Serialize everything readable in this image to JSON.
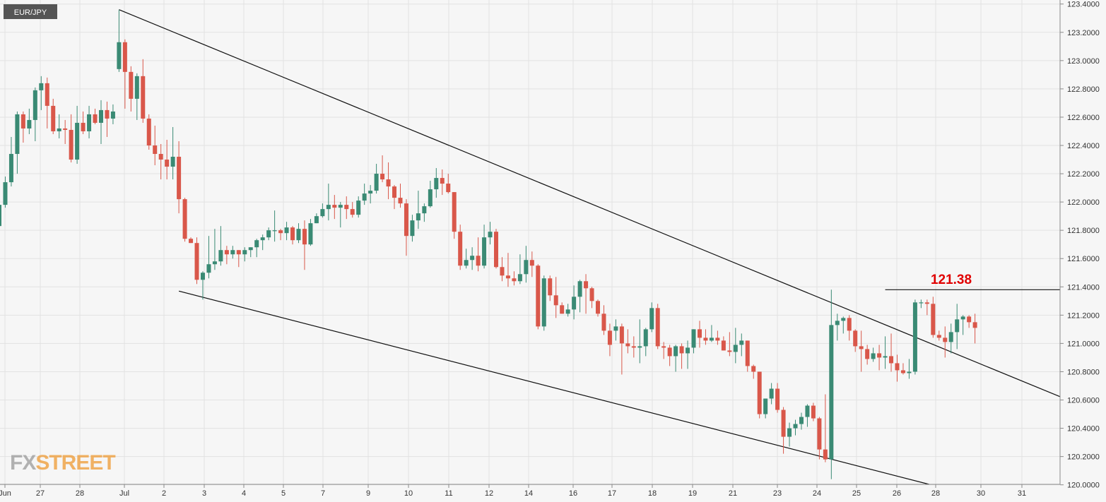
{
  "symbol": "EUR/JPY",
  "brand": {
    "fx": "FX",
    "street": "STREET"
  },
  "colors": {
    "up": "#3a8a74",
    "down": "#d9574a",
    "grid": "#e2e2e2",
    "axis": "#8a8a8a",
    "text": "#333333",
    "annotation": "#e00000",
    "badge_bg": "#555555",
    "brand": "#ee9a33"
  },
  "chart_data": {
    "type": "candlestick",
    "title": "EUR/JPY",
    "ylim": [
      119.94,
      123.44
    ],
    "y_ticks": [
      "123.4000",
      "123.2000",
      "123.0000",
      "122.8000",
      "122.6000",
      "122.4000",
      "122.2000",
      "122.0000",
      "121.8000",
      "121.6000",
      "121.4000",
      "121.2000",
      "121.0000",
      "120.8000",
      "120.6000",
      "120.4000",
      "120.2000",
      "120.0000"
    ],
    "x_ticks": [
      "Jun",
      "27",
      "28",
      "Jul",
      "2",
      "3",
      "4",
      "5",
      "7",
      "9",
      "10",
      "11",
      "12",
      "14",
      "16",
      "17",
      "18",
      "19",
      "21",
      "23",
      "24",
      "25",
      "26",
      "28",
      "30",
      "31"
    ],
    "annotations": [
      {
        "text": "121.38",
        "value": 121.38
      }
    ],
    "trendlines": [
      {
        "name": "upper",
        "from": {
          "bar": 20,
          "price": 123.36
        },
        "to": {
          "bar": 182,
          "price": 120.54
        }
      },
      {
        "name": "lower",
        "from": {
          "bar": 30,
          "price": 121.37
        },
        "to": {
          "bar": 163,
          "price": 119.92
        }
      },
      {
        "name": "resistance",
        "from": {
          "bar": 148,
          "price": 121.38
        },
        "to": {
          "bar": 182,
          "price": 121.38
        }
      }
    ],
    "candles": [
      [
        121.83,
        121.98,
        121.83,
        121.99
      ],
      [
        121.98,
        122.14,
        121.96,
        122.18
      ],
      [
        122.14,
        122.34,
        122.11,
        122.46
      ],
      [
        122.34,
        122.62,
        122.2,
        122.64
      ],
      [
        122.62,
        122.52,
        122.42,
        122.64
      ],
      [
        122.52,
        122.58,
        122.48,
        122.66
      ],
      [
        122.58,
        122.79,
        122.43,
        122.81
      ],
      [
        122.79,
        122.84,
        122.65,
        122.89
      ],
      [
        122.84,
        122.68,
        122.52,
        122.88
      ],
      [
        122.68,
        122.5,
        122.48,
        122.73
      ],
      [
        122.5,
        122.52,
        122.45,
        122.62
      ],
      [
        122.52,
        122.51,
        122.41,
        122.58
      ],
      [
        122.51,
        122.3,
        122.28,
        122.62
      ],
      [
        122.3,
        122.56,
        122.27,
        122.68
      ],
      [
        122.56,
        122.5,
        122.48,
        122.64
      ],
      [
        122.5,
        122.62,
        122.45,
        122.68
      ],
      [
        122.62,
        122.56,
        122.55,
        122.66
      ],
      [
        122.56,
        122.65,
        122.41,
        122.72
      ],
      [
        122.65,
        122.59,
        122.46,
        122.71
      ],
      [
        122.59,
        122.64,
        122.55,
        122.69
      ],
      [
        122.94,
        123.13,
        122.92,
        123.36
      ],
      [
        123.13,
        122.92,
        122.66,
        123.15
      ],
      [
        122.92,
        122.73,
        122.64,
        122.96
      ],
      [
        122.73,
        122.89,
        122.58,
        122.91
      ],
      [
        122.89,
        122.59,
        122.56,
        123.01
      ],
      [
        122.59,
        122.4,
        122.37,
        122.62
      ],
      [
        122.4,
        122.34,
        122.26,
        122.54
      ],
      [
        122.34,
        122.3,
        122.16,
        122.41
      ],
      [
        122.3,
        122.25,
        122.16,
        122.44
      ],
      [
        122.25,
        122.32,
        122.16,
        122.53
      ],
      [
        122.32,
        122.02,
        121.92,
        122.43
      ],
      [
        122.02,
        121.74,
        121.72,
        122.03
      ],
      [
        121.74,
        121.71,
        121.71,
        121.75
      ],
      [
        121.71,
        121.45,
        121.42,
        121.75
      ],
      [
        121.45,
        121.5,
        121.31,
        121.51
      ],
      [
        121.5,
        121.56,
        121.46,
        121.76
      ],
      [
        121.56,
        121.58,
        121.52,
        121.81
      ],
      [
        121.58,
        121.66,
        121.55,
        121.83
      ],
      [
        121.66,
        121.63,
        121.56,
        121.69
      ],
      [
        121.63,
        121.66,
        121.6,
        121.69
      ],
      [
        121.66,
        121.63,
        121.54,
        121.66
      ],
      [
        121.63,
        121.66,
        121.58,
        121.68
      ],
      [
        121.66,
        121.68,
        121.61,
        121.68
      ],
      [
        121.68,
        121.73,
        121.61,
        121.74
      ],
      [
        121.73,
        121.75,
        121.66,
        121.77
      ],
      [
        121.75,
        121.8,
        121.73,
        121.82
      ],
      [
        121.8,
        121.8,
        121.72,
        121.94
      ],
      [
        121.8,
        121.78,
        121.73,
        121.81
      ],
      [
        121.78,
        121.82,
        121.73,
        121.86
      ],
      [
        121.82,
        121.73,
        121.7,
        121.83
      ],
      [
        121.73,
        121.81,
        121.71,
        121.85
      ],
      [
        121.81,
        121.7,
        121.52,
        121.87
      ],
      [
        121.7,
        121.85,
        121.69,
        121.88
      ],
      [
        121.85,
        121.9,
        121.85,
        121.92
      ],
      [
        121.9,
        121.95,
        121.89,
        121.99
      ],
      [
        121.95,
        121.98,
        121.87,
        122.13
      ],
      [
        121.98,
        121.96,
        121.88,
        122.05
      ],
      [
        121.96,
        121.98,
        121.82,
        122.0
      ],
      [
        121.98,
        121.95,
        121.88,
        122.04
      ],
      [
        121.95,
        121.91,
        121.89,
        122.0
      ],
      [
        121.91,
        122.01,
        121.89,
        122.04
      ],
      [
        122.01,
        122.06,
        121.98,
        122.13
      ],
      [
        122.06,
        122.08,
        121.99,
        122.12
      ],
      [
        122.08,
        122.2,
        122.06,
        122.27
      ],
      [
        122.2,
        122.16,
        122.14,
        122.33
      ],
      [
        122.16,
        122.11,
        122.02,
        122.28
      ],
      [
        122.11,
        122.03,
        121.95,
        122.12
      ],
      [
        122.03,
        121.99,
        121.96,
        122.13
      ],
      [
        121.99,
        121.76,
        121.62,
        122.02
      ],
      [
        121.76,
        121.87,
        121.72,
        121.91
      ],
      [
        121.87,
        121.92,
        121.81,
        122.08
      ],
      [
        121.92,
        121.97,
        121.86,
        121.99
      ],
      [
        121.97,
        122.09,
        121.96,
        122.15
      ],
      [
        122.09,
        122.17,
        122.03,
        122.24
      ],
      [
        122.17,
        122.13,
        122.05,
        122.23
      ],
      [
        122.13,
        122.07,
        122.06,
        122.2
      ],
      [
        122.07,
        121.79,
        121.74,
        122.07
      ],
      [
        121.79,
        121.55,
        121.52,
        121.84
      ],
      [
        121.55,
        121.59,
        121.53,
        121.67
      ],
      [
        121.59,
        121.62,
        121.52,
        121.68
      ],
      [
        121.62,
        121.55,
        121.51,
        121.75
      ],
      [
        121.55,
        121.75,
        121.53,
        121.84
      ],
      [
        121.75,
        121.79,
        121.7,
        121.86
      ],
      [
        121.79,
        121.54,
        121.53,
        121.81
      ],
      [
        121.54,
        121.48,
        121.44,
        121.61
      ],
      [
        121.48,
        121.46,
        121.4,
        121.64
      ],
      [
        121.46,
        121.44,
        121.41,
        121.51
      ],
      [
        121.44,
        121.49,
        121.42,
        121.63
      ],
      [
        121.49,
        121.59,
        121.43,
        121.69
      ],
      [
        121.59,
        121.55,
        121.47,
        121.65
      ],
      [
        121.55,
        121.12,
        121.1,
        121.56
      ],
      [
        121.12,
        121.46,
        121.09,
        121.48
      ],
      [
        121.46,
        121.34,
        121.3,
        121.48
      ],
      [
        121.34,
        121.27,
        121.18,
        121.47
      ],
      [
        121.27,
        121.21,
        121.21,
        121.29
      ],
      [
        121.21,
        121.24,
        121.19,
        121.28
      ],
      [
        121.24,
        121.33,
        121.17,
        121.41
      ],
      [
        121.33,
        121.44,
        121.22,
        121.45
      ],
      [
        121.44,
        121.39,
        121.21,
        121.49
      ],
      [
        121.39,
        121.3,
        121.25,
        121.4
      ],
      [
        121.3,
        121.21,
        121.19,
        121.31
      ],
      [
        121.21,
        121.09,
        121.06,
        121.27
      ],
      [
        121.09,
        120.99,
        120.91,
        121.14
      ],
      [
        121.09,
        121.12,
        121.02,
        121.17
      ],
      [
        121.12,
        121.0,
        120.78,
        121.14
      ],
      [
        121.0,
        120.98,
        120.93,
        121.1
      ],
      [
        120.98,
        120.97,
        120.9,
        121.05
      ],
      [
        120.97,
        120.98,
        120.86,
        121.17
      ],
      [
        120.98,
        121.1,
        120.91,
        121.11
      ],
      [
        121.1,
        121.25,
        121.08,
        121.29
      ],
      [
        121.25,
        120.98,
        120.96,
        121.28
      ],
      [
        120.98,
        120.97,
        120.89,
        121.01
      ],
      [
        120.97,
        120.91,
        120.84,
        120.99
      ],
      [
        120.91,
        120.98,
        120.8,
        120.99
      ],
      [
        120.98,
        120.93,
        120.82,
        121.0
      ],
      [
        120.93,
        120.97,
        120.82,
        121.02
      ],
      [
        120.97,
        121.1,
        120.93,
        121.1
      ],
      [
        121.1,
        121.04,
        120.97,
        121.16
      ],
      [
        121.04,
        121.02,
        120.99,
        121.1
      ],
      [
        121.02,
        121.04,
        121.01,
        121.13
      ],
      [
        121.04,
        121.02,
        120.99,
        121.09
      ],
      [
        121.02,
        120.95,
        120.95,
        121.05
      ],
      [
        120.95,
        120.94,
        120.91,
        121.08
      ],
      [
        120.94,
        120.99,
        120.86,
        121.11
      ],
      [
        120.99,
        121.02,
        120.91,
        121.07
      ],
      [
        121.02,
        120.84,
        120.8,
        121.02
      ],
      [
        120.84,
        120.8,
        120.75,
        120.85
      ],
      [
        120.8,
        120.5,
        120.47,
        120.8
      ],
      [
        120.5,
        120.61,
        120.47,
        120.61
      ],
      [
        120.61,
        120.68,
        120.57,
        120.72
      ],
      [
        120.68,
        120.53,
        120.51,
        120.72
      ],
      [
        120.53,
        120.34,
        120.22,
        120.55
      ],
      [
        120.34,
        120.4,
        120.27,
        120.44
      ],
      [
        120.4,
        120.43,
        120.35,
        120.46
      ],
      [
        120.43,
        120.48,
        120.39,
        120.51
      ],
      [
        120.48,
        120.56,
        120.41,
        120.57
      ],
      [
        120.56,
        120.47,
        120.45,
        120.58
      ],
      [
        120.47,
        120.25,
        120.18,
        120.48
      ],
      [
        120.25,
        120.18,
        120.16,
        120.64
      ],
      [
        120.18,
        121.13,
        120.04,
        121.38
      ],
      [
        121.13,
        121.16,
        121.02,
        121.21
      ],
      [
        121.16,
        121.18,
        121.07,
        121.19
      ],
      [
        121.18,
        121.09,
        121.02,
        121.2
      ],
      [
        121.09,
        120.98,
        120.94,
        121.1
      ],
      [
        120.98,
        120.96,
        120.8,
        121.09
      ],
      [
        120.96,
        120.89,
        120.85,
        120.99
      ],
      [
        120.89,
        120.93,
        120.87,
        120.97
      ],
      [
        120.93,
        120.9,
        120.81,
        120.99
      ],
      [
        120.9,
        120.91,
        120.82,
        121.05
      ],
      [
        120.91,
        120.86,
        120.8,
        121.07
      ],
      [
        120.86,
        120.81,
        120.73,
        120.92
      ],
      [
        120.81,
        120.79,
        120.78,
        120.86
      ],
      [
        120.79,
        120.8,
        120.75,
        120.89
      ],
      [
        120.8,
        121.29,
        120.78,
        121.31
      ],
      [
        121.29,
        121.29,
        121.25,
        121.31
      ],
      [
        121.29,
        121.28,
        121.2,
        121.31
      ],
      [
        121.28,
        121.06,
        121.04,
        121.33
      ],
      [
        121.06,
        121.04,
        121.02,
        121.09
      ],
      [
        121.04,
        121.01,
        120.9,
        121.12
      ],
      [
        121.01,
        121.08,
        120.93,
        121.14
      ],
      [
        121.08,
        121.17,
        120.96,
        121.28
      ],
      [
        121.17,
        121.19,
        121.06,
        121.2
      ],
      [
        121.19,
        121.15,
        121.11,
        121.2
      ],
      [
        121.15,
        121.11,
        121.0,
        121.21
      ]
    ]
  }
}
